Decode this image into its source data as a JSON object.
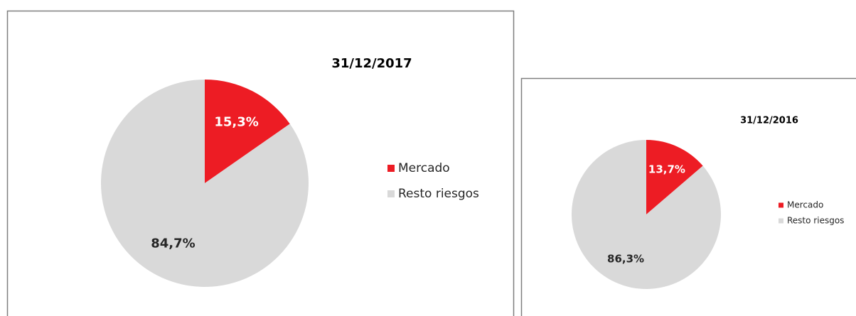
{
  "chart_data": [
    {
      "type": "pie",
      "title": "31/12/2017",
      "categories": [
        "Mercado",
        "Resto riesgos"
      ],
      "values": [
        15.3,
        84.7
      ],
      "value_labels": [
        "15,3%",
        "84,7%"
      ],
      "colors": [
        "#ed1c24",
        "#d9d9d9"
      ]
    },
    {
      "type": "pie",
      "title": "31/12/2016",
      "categories": [
        "Mercado",
        "Resto riesgos"
      ],
      "values": [
        13.7,
        86.3
      ],
      "value_labels": [
        "13,7%",
        "86,3%"
      ],
      "colors": [
        "#ed1c24",
        "#d9d9d9"
      ]
    }
  ]
}
